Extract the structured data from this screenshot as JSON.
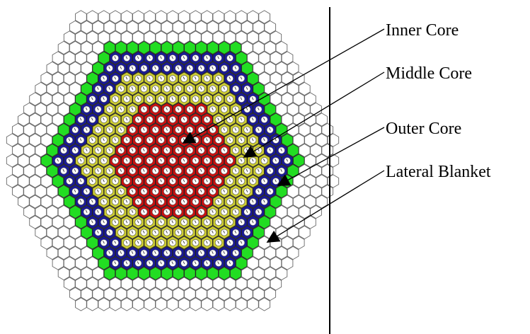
{
  "labels": {
    "inner": "Inner Core",
    "middle": "Middle Core",
    "outer": "Outer Core",
    "blanket": "Lateral Blanket"
  },
  "zones": [
    {
      "id": "inner",
      "color": "#cc1111",
      "core": true
    },
    {
      "id": "middle",
      "color": "#cccc33",
      "core": true
    },
    {
      "id": "outer",
      "color": "#1a1a99",
      "core": true
    },
    {
      "id": "blanket",
      "color": "#22dd22",
      "core": false
    },
    {
      "id": "reflector",
      "color": "#ffffff",
      "core": false
    }
  ]
}
